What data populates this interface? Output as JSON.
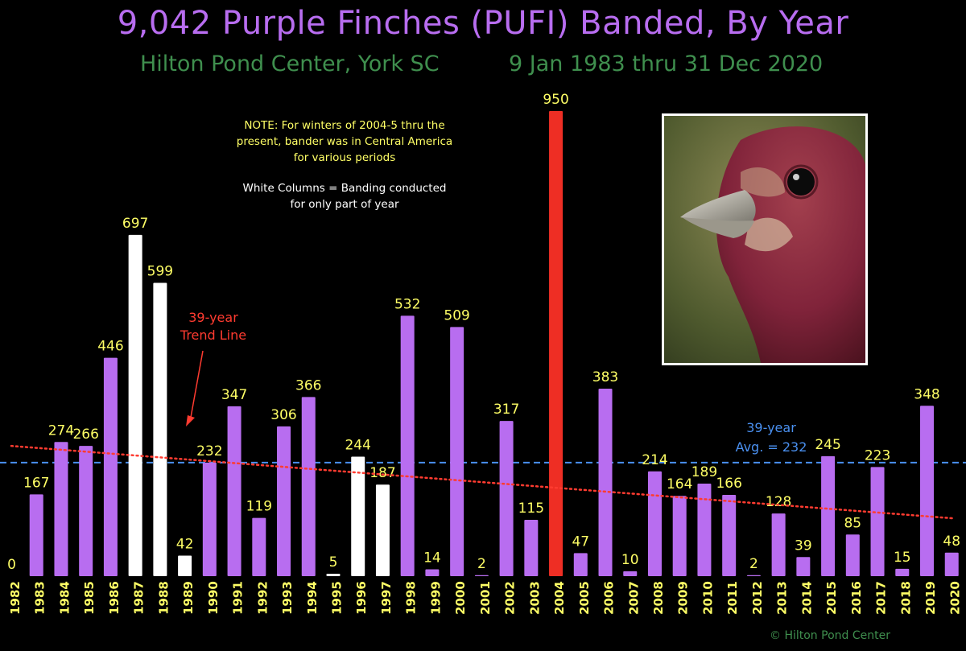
{
  "title": "9,042 Purple Finches (PUFI) Banded, By Year",
  "subtitle_left": "Hilton Pond Center, York SC",
  "subtitle_right": "9 Jan 1983 thru 31 Dec 2020",
  "note": {
    "line1": "NOTE: For winters of 2004-5 thru the",
    "line2": "present, bander was in Central America",
    "line3": "for various periods",
    "line4": "White Columns = Banding conducted",
    "line5": "for only part of year"
  },
  "trend_label": {
    "line1": "39-year",
    "line2": "Trend Line"
  },
  "avg_label": {
    "line1": "39-year",
    "line2": "Avg. = 232"
  },
  "credit": "© Hilton Pond Center",
  "colors": {
    "background": "#000000",
    "title": "#b86df0",
    "subtitle": "#3f8f4e",
    "bar_default": "#b86df0",
    "bar_partial_year": "#ffffff",
    "bar_max": "#ee2e24",
    "value_label": "#ffff66",
    "max_label": "#ff3b30",
    "trend_line": "#ff3b30",
    "average_line": "#4a90f0"
  },
  "photo": {
    "subject": "purple-finch-head-photo"
  },
  "chart_data": {
    "type": "bar",
    "categories": [
      "1982",
      "1983",
      "1984",
      "1985",
      "1986",
      "1987",
      "1988",
      "1989",
      "1990",
      "1991",
      "1992",
      "1993",
      "1994",
      "1995",
      "1996",
      "1997",
      "1998",
      "1999",
      "2000",
      "2001",
      "2002",
      "2003",
      "2004",
      "2005",
      "2006",
      "2007",
      "2008",
      "2009",
      "2010",
      "2011",
      "2012",
      "2013",
      "2014",
      "2015",
      "2016",
      "2017",
      "2018",
      "2019",
      "2020"
    ],
    "values": [
      0,
      167,
      274,
      266,
      446,
      697,
      599,
      42,
      232,
      347,
      119,
      306,
      366,
      5,
      244,
      187,
      532,
      14,
      509,
      2,
      317,
      115,
      950,
      47,
      383,
      10,
      214,
      164,
      189,
      166,
      2,
      128,
      39,
      245,
      85,
      223,
      15,
      348,
      48
    ],
    "partial_year_categories": [
      "1987",
      "1988",
      "1989",
      "1995",
      "1996",
      "1997"
    ],
    "max_category": "2004",
    "average": 232,
    "trend_line": {
      "start_value": 266,
      "end_value": 118
    },
    "ylim": [
      0,
      950
    ]
  }
}
